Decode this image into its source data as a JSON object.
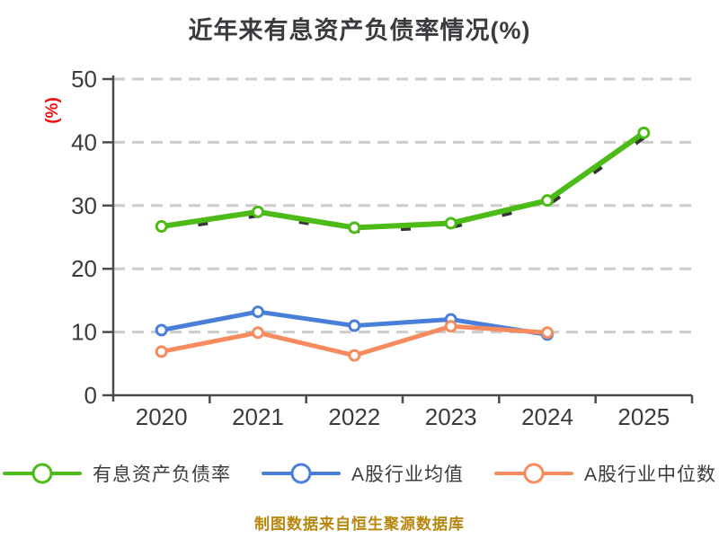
{
  "title": "近年来有息资产负债率情况(%)",
  "footer": "制图数据来自恒生聚源数据库",
  "y_axis": {
    "label": "(%)",
    "ticks": [
      0,
      10,
      20,
      30,
      40,
      50
    ],
    "min": 0,
    "max": 50
  },
  "x_axis": {
    "categories": [
      "2020",
      "2021",
      "2022",
      "2023",
      "2024",
      "2025"
    ]
  },
  "colors": {
    "series_green": "#4cbb17",
    "series_blue": "#4a7fd9",
    "series_orange": "#f78b5e",
    "axis_text": "#3b3b3f",
    "axis_line": "#4a4a4a",
    "gridline": "#cccccc",
    "ylabel_red": "#f20d0d",
    "footer_gold": "#b8860b",
    "marker_fill": "#ffffff"
  },
  "chart_data": {
    "type": "line",
    "title": "近年来有息资产负债率情况(%)",
    "xlabel": "",
    "ylabel": "(%)",
    "x": [
      "2020",
      "2021",
      "2022",
      "2023",
      "2024",
      "2025"
    ],
    "ylim": [
      0,
      50
    ],
    "y_ticks": [
      0,
      10,
      20,
      30,
      40,
      50
    ],
    "grid": "horizontal-dashed",
    "legend_position": "bottom",
    "series": [
      {
        "name": "有息资产负债率",
        "color": "#4cbb17",
        "marker": "circle-white-fill",
        "values": [
          26.7,
          29.0,
          26.5,
          27.2,
          30.8,
          41.5
        ]
      },
      {
        "name": "A股行业均值",
        "color": "#4a7fd9",
        "marker": "circle-white-fill",
        "values": [
          10.3,
          13.2,
          11.0,
          12.0,
          9.6,
          null
        ]
      },
      {
        "name": "A股行业中位数",
        "color": "#f78b5e",
        "marker": "circle-white-fill",
        "values": [
          6.9,
          9.9,
          6.3,
          10.9,
          9.9,
          null
        ]
      }
    ]
  }
}
